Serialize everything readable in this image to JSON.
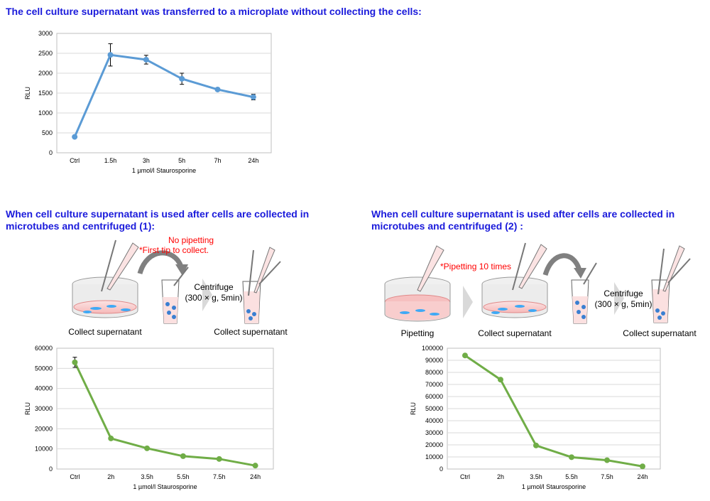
{
  "headings": {
    "top": "The cell culture supernatant was transferred to a microplate without collecting the cells:",
    "left": [
      "When cell culture supernatant is used after cells are collected in",
      "microtubes and centrifuged (1):"
    ],
    "right": [
      "When cell culture supernatant is used after cells are collected in",
      "microtubes and centrifuged (2) :"
    ]
  },
  "diagram1": {
    "note_line1": "No pipetting",
    "note_line2": "*First tip to collect.",
    "centrifuge_line1": "Centrifuge",
    "centrifuge_line2": "(300 × g, 5min)",
    "label_left": "Collect supernatant",
    "label_right": "Collect supernatant"
  },
  "diagram2": {
    "note": "*Pipetting 10 times",
    "centrifuge_line1": "Centrifuge",
    "centrifuge_line2": "(300 × g, 5min)",
    "label_pipetting": "Pipetting",
    "label_mid": "Collect supernatant",
    "label_right": "Collect supernatant"
  },
  "colors": {
    "blue_line": "#5b9bd5",
    "green_line": "#70ad47",
    "heading": "#1a1adb",
    "note_red": "#ff0000"
  },
  "chart_data": [
    {
      "type": "line",
      "categories": [
        "Ctrl",
        "1.5h",
        "3h",
        "5h",
        "7h",
        "24h"
      ],
      "values": [
        400,
        2460,
        2340,
        1860,
        1590,
        1400
      ],
      "errors": [
        0,
        280,
        110,
        140,
        0,
        70
      ],
      "xlabel": "1 µmol/l Staurosporine",
      "ylabel": "RLU",
      "ylim": [
        0,
        3000
      ],
      "yticks": [
        "0",
        "500",
        "1000",
        "1500",
        "2000",
        "2500",
        "3000"
      ],
      "grid": true
    },
    {
      "type": "line",
      "categories": [
        "Ctrl",
        "2h",
        "3.5h",
        "5.5h",
        "7.5h",
        "24h"
      ],
      "values": [
        53000,
        15200,
        10300,
        6400,
        5000,
        1700
      ],
      "errors": [
        2500,
        0,
        0,
        0,
        0,
        0
      ],
      "xlabel": "1 µmol/l Staurosporine",
      "ylabel": "RLU",
      "ylim": [
        0,
        60000
      ],
      "yticks": [
        "0",
        "10000",
        "20000",
        "30000",
        "40000",
        "50000",
        "60000"
      ],
      "grid": true
    },
    {
      "type": "line",
      "categories": [
        "Ctrl",
        "2h",
        "3.5h",
        "5.5h",
        "7.5h",
        "24h"
      ],
      "values": [
        94000,
        74000,
        19500,
        9800,
        7300,
        2200
      ],
      "errors": [
        0,
        0,
        0,
        0,
        0,
        0
      ],
      "xlabel": "1 µmol/l Staurosporine",
      "ylabel": "RLU",
      "ylim": [
        0,
        100000
      ],
      "yticks": [
        "0",
        "10000",
        "20000",
        "30000",
        "40000",
        "50000",
        "60000",
        "70000",
        "80000",
        "90000",
        "100000"
      ],
      "grid": true
    }
  ]
}
